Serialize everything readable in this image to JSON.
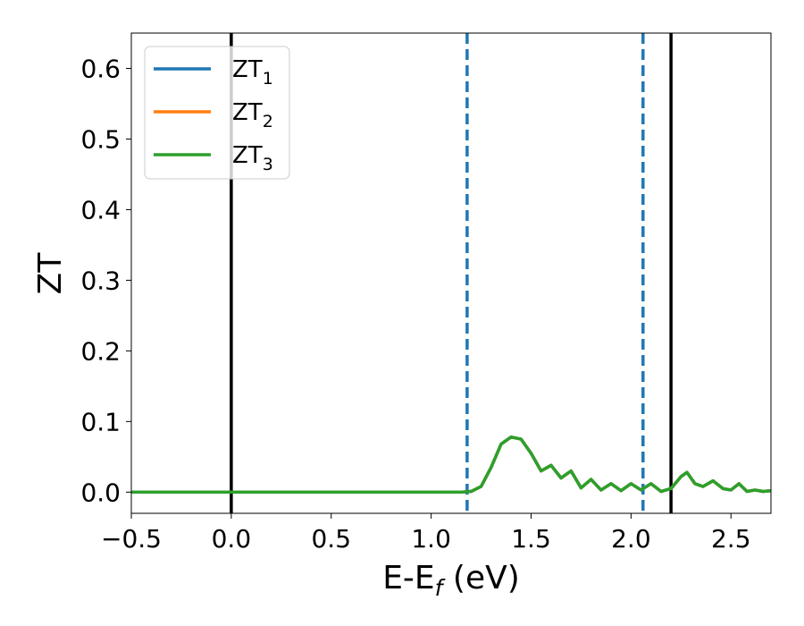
{
  "chart_data": {
    "type": "line",
    "title": "",
    "xlabel": {
      "main": "E-E",
      "sub": "f",
      "tail": " (eV)"
    },
    "ylabel": "ZT",
    "xlim": [
      -0.5,
      2.7
    ],
    "ylim": [
      -0.03,
      0.65
    ],
    "xticks": [
      -0.5,
      0.0,
      0.5,
      1.0,
      1.5,
      2.0,
      2.5
    ],
    "xtick_labels": [
      "−0.5",
      "0.0",
      "0.5",
      "1.0",
      "1.5",
      "2.0",
      "2.5"
    ],
    "yticks": [
      0.0,
      0.1,
      0.2,
      0.3,
      0.4,
      0.5,
      0.6
    ],
    "ytick_labels": [
      "0.0",
      "0.1",
      "0.2",
      "0.3",
      "0.4",
      "0.5",
      "0.6"
    ],
    "grid": false,
    "legend": {
      "placement": "top-left",
      "entries": [
        {
          "main": "ZT",
          "sub": "1",
          "color": "#1f77b4"
        },
        {
          "main": "ZT",
          "sub": "2",
          "color": "#ff7f0e"
        },
        {
          "main": "ZT",
          "sub": "3",
          "color": "#2ca02c"
        }
      ]
    },
    "x": [
      -0.5,
      0.0,
      0.5,
      1.0,
      1.1,
      1.15,
      1.2,
      1.25,
      1.3,
      1.35,
      1.4,
      1.45,
      1.5,
      1.55,
      1.6,
      1.65,
      1.7,
      1.75,
      1.8,
      1.85,
      1.9,
      1.95,
      2.0,
      2.05,
      2.1,
      2.15,
      2.2,
      2.25,
      2.28,
      2.32,
      2.36,
      2.41,
      2.46,
      2.5,
      2.54,
      2.58,
      2.62,
      2.66,
      2.7
    ],
    "series": [
      {
        "name": "ZT1",
        "color": "#1f77b4",
        "values": [
          0,
          0,
          0,
          0,
          0,
          0,
          0.001,
          0.008,
          0.035,
          0.068,
          0.078,
          0.075,
          0.055,
          0.03,
          0.038,
          0.02,
          0.03,
          0.006,
          0.018,
          0.003,
          0.012,
          0.002,
          0.012,
          0.003,
          0.012,
          0.001,
          0.005,
          0.022,
          0.028,
          0.012,
          0.008,
          0.016,
          0.005,
          0.003,
          0.012,
          0.001,
          0.003,
          0.001,
          0.002
        ]
      },
      {
        "name": "ZT2",
        "color": "#ff7f0e",
        "values": [
          0,
          0,
          0,
          0,
          0,
          0,
          0.001,
          0.008,
          0.035,
          0.068,
          0.078,
          0.075,
          0.055,
          0.03,
          0.038,
          0.02,
          0.03,
          0.006,
          0.018,
          0.003,
          0.012,
          0.002,
          0.012,
          0.003,
          0.012,
          0.001,
          0.005,
          0.022,
          0.028,
          0.012,
          0.008,
          0.016,
          0.005,
          0.003,
          0.012,
          0.001,
          0.003,
          0.001,
          0.002
        ]
      },
      {
        "name": "ZT3",
        "color": "#2ca02c",
        "values": [
          0,
          0,
          0,
          0,
          0,
          0,
          0.001,
          0.008,
          0.035,
          0.068,
          0.078,
          0.075,
          0.055,
          0.03,
          0.038,
          0.02,
          0.03,
          0.006,
          0.018,
          0.003,
          0.012,
          0.002,
          0.012,
          0.003,
          0.012,
          0.001,
          0.005,
          0.022,
          0.028,
          0.012,
          0.008,
          0.016,
          0.005,
          0.003,
          0.012,
          0.001,
          0.003,
          0.001,
          0.002
        ]
      }
    ],
    "vlines": [
      {
        "x": 0.0,
        "style": "solid",
        "color": "#000000"
      },
      {
        "x": 2.2,
        "style": "solid",
        "color": "#000000"
      },
      {
        "x": 1.18,
        "style": "dashed",
        "color": "#1f77b4"
      },
      {
        "x": 2.06,
        "style": "dashed",
        "color": "#1f77b4"
      }
    ]
  }
}
